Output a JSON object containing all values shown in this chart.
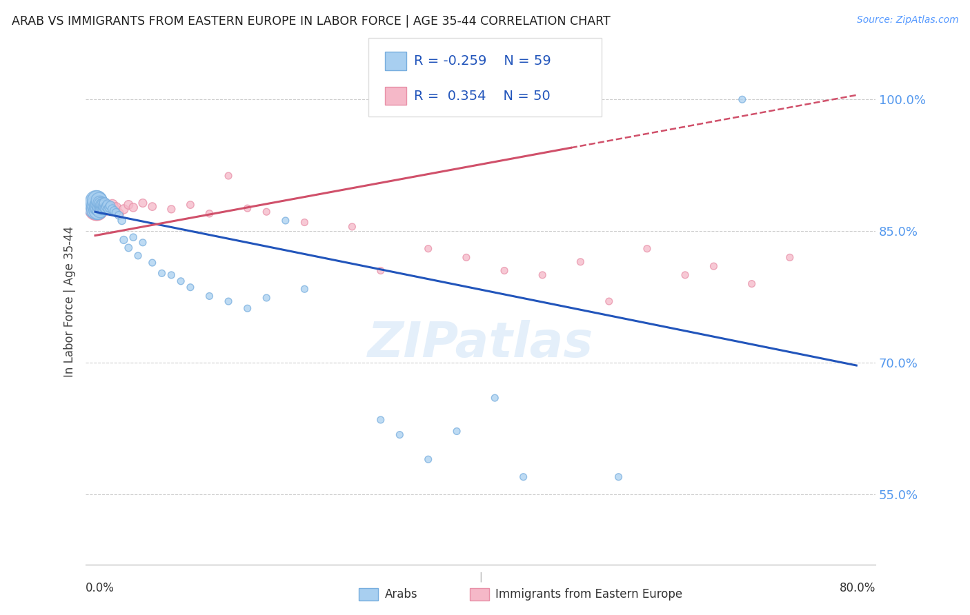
{
  "title": "ARAB VS IMMIGRANTS FROM EASTERN EUROPE IN LABOR FORCE | AGE 35-44 CORRELATION CHART",
  "source": "Source: ZipAtlas.com",
  "ylabel": "In Labor Force | Age 35-44",
  "yticks": [
    0.55,
    0.7,
    0.85,
    1.0
  ],
  "ytick_labels": [
    "55.0%",
    "70.0%",
    "85.0%",
    "100.0%"
  ],
  "xtick_left_label": "0.0%",
  "xtick_right_label": "80.0%",
  "legend_arab_R": "-0.259",
  "legend_arab_N": "59",
  "legend_imm_R": "0.354",
  "legend_imm_N": "50",
  "arab_fill": "#A8CFF0",
  "arab_edge": "#78AEDE",
  "imm_fill": "#F5B8C8",
  "imm_edge": "#E890A8",
  "line_arab": "#2255BB",
  "line_imm": "#D0506A",
  "watermark": "ZIPatlas",
  "bg": "#FFFFFF",
  "xlim_pct": [
    -0.01,
    0.82
  ],
  "ylim": [
    0.47,
    1.07
  ],
  "arab_line_x0": 0.0,
  "arab_line_y0": 0.872,
  "arab_line_x1": 0.8,
  "arab_line_y1": 0.697,
  "imm_line_x0": 0.0,
  "imm_line_y0": 0.845,
  "imm_line_x1_solid": 0.5,
  "imm_line_x1_dash": 0.8,
  "imm_line_y1": 1.005,
  "arab_x": [
    0.001,
    0.001,
    0.001,
    0.002,
    0.002,
    0.002,
    0.003,
    0.003,
    0.004,
    0.004,
    0.004,
    0.005,
    0.005,
    0.005,
    0.006,
    0.006,
    0.007,
    0.007,
    0.008,
    0.008,
    0.009,
    0.009,
    0.01,
    0.01,
    0.011,
    0.012,
    0.013,
    0.014,
    0.015,
    0.016,
    0.018,
    0.02,
    0.022,
    0.025,
    0.028,
    0.03,
    0.035,
    0.04,
    0.045,
    0.05,
    0.06,
    0.07,
    0.08,
    0.09,
    0.1,
    0.12,
    0.14,
    0.16,
    0.18,
    0.2,
    0.22,
    0.3,
    0.32,
    0.35,
    0.38,
    0.42,
    0.45,
    0.55,
    0.68
  ],
  "arab_y": [
    0.877,
    0.881,
    0.884,
    0.875,
    0.88,
    0.885,
    0.874,
    0.878,
    0.877,
    0.881,
    0.885,
    0.874,
    0.878,
    0.882,
    0.877,
    0.881,
    0.876,
    0.88,
    0.876,
    0.88,
    0.875,
    0.879,
    0.877,
    0.882,
    0.876,
    0.878,
    0.88,
    0.875,
    0.877,
    0.879,
    0.875,
    0.873,
    0.871,
    0.868,
    0.862,
    0.84,
    0.831,
    0.843,
    0.822,
    0.837,
    0.814,
    0.802,
    0.8,
    0.793,
    0.786,
    0.776,
    0.77,
    0.762,
    0.774,
    0.862,
    0.784,
    0.635,
    0.618,
    0.59,
    0.622,
    0.66,
    0.57,
    0.57,
    1.0
  ],
  "arab_sizes": [
    600,
    550,
    500,
    480,
    440,
    400,
    370,
    340,
    310,
    290,
    270,
    250,
    230,
    210,
    200,
    190,
    175,
    165,
    155,
    148,
    140,
    133,
    128,
    122,
    115,
    110,
    105,
    100,
    95,
    90,
    85,
    80,
    75,
    70,
    66,
    62,
    58,
    54,
    50,
    50,
    50,
    50,
    50,
    50,
    50,
    50,
    50,
    50,
    50,
    50,
    50,
    50,
    50,
    50,
    50,
    50,
    50,
    50,
    50
  ],
  "imm_x": [
    0.001,
    0.001,
    0.002,
    0.002,
    0.003,
    0.003,
    0.004,
    0.004,
    0.005,
    0.005,
    0.006,
    0.006,
    0.007,
    0.008,
    0.008,
    0.009,
    0.01,
    0.011,
    0.012,
    0.013,
    0.015,
    0.018,
    0.02,
    0.022,
    0.025,
    0.03,
    0.035,
    0.04,
    0.05,
    0.06,
    0.08,
    0.1,
    0.12,
    0.14,
    0.16,
    0.18,
    0.22,
    0.27,
    0.3,
    0.35,
    0.39,
    0.43,
    0.47,
    0.51,
    0.54,
    0.58,
    0.62,
    0.65,
    0.69,
    0.73
  ],
  "imm_y": [
    0.875,
    0.879,
    0.874,
    0.878,
    0.876,
    0.88,
    0.875,
    0.879,
    0.877,
    0.881,
    0.878,
    0.882,
    0.877,
    0.876,
    0.88,
    0.879,
    0.877,
    0.875,
    0.879,
    0.876,
    0.878,
    0.88,
    0.876,
    0.877,
    0.87,
    0.875,
    0.88,
    0.877,
    0.882,
    0.878,
    0.875,
    0.88,
    0.87,
    0.913,
    0.876,
    0.872,
    0.86,
    0.855,
    0.805,
    0.83,
    0.82,
    0.805,
    0.8,
    0.815,
    0.77,
    0.83,
    0.8,
    0.81,
    0.79,
    0.82
  ],
  "imm_sizes": [
    550,
    500,
    470,
    440,
    410,
    380,
    350,
    320,
    300,
    280,
    260,
    240,
    225,
    210,
    195,
    182,
    170,
    160,
    150,
    142,
    132,
    122,
    112,
    105,
    98,
    90,
    84,
    78,
    72,
    68,
    62,
    58,
    54,
    50,
    50,
    50,
    50,
    50,
    50,
    50,
    50,
    50,
    50,
    50,
    50,
    50,
    50,
    50,
    50,
    50
  ]
}
